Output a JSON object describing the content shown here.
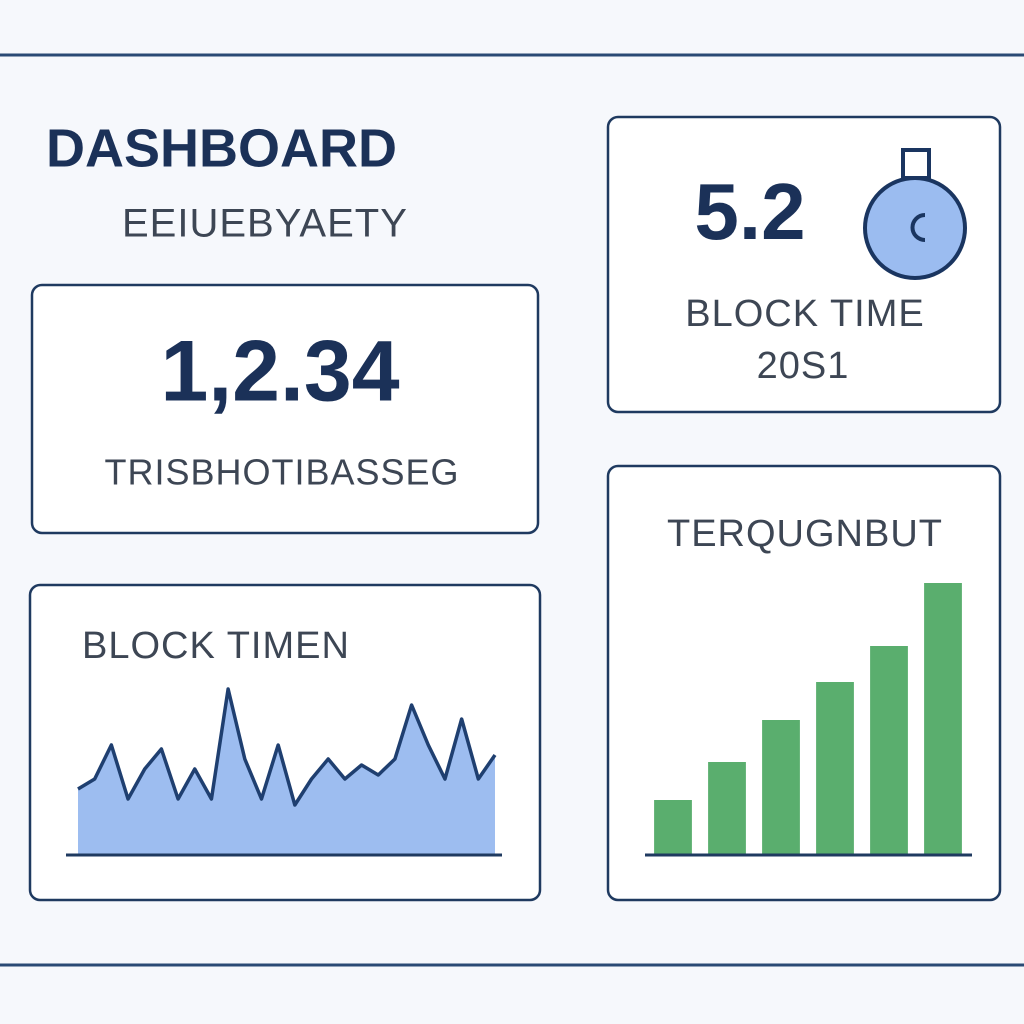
{
  "header": {
    "title": "DASHBOARD",
    "subtitle": "EEIUEBYAETY"
  },
  "transactions": {
    "value": "1,2.34",
    "label": "TRISBHOTIBASSEG"
  },
  "block_time": {
    "value": "5.2",
    "label": "BLOCK TIME",
    "sublabel": "20S1"
  },
  "block_time_chart": {
    "type": "area",
    "title": "BLOCK TIMEN",
    "values": [
      33,
      38,
      55,
      28,
      43,
      53,
      28,
      43,
      28,
      83,
      48,
      28,
      55,
      25,
      38,
      48,
      38,
      45,
      40,
      48,
      75,
      55,
      38,
      68,
      38,
      50
    ],
    "ylim": [
      0,
      100
    ],
    "color": "#9dbdf0",
    "line_color": "#1f3f70"
  },
  "throughput_chart": {
    "type": "bar",
    "title": "TERQUGNBUT",
    "values": [
      55,
      93,
      135,
      173,
      209,
      272
    ],
    "ylim": [
      0,
      300
    ],
    "color": "#5aae6e"
  }
}
